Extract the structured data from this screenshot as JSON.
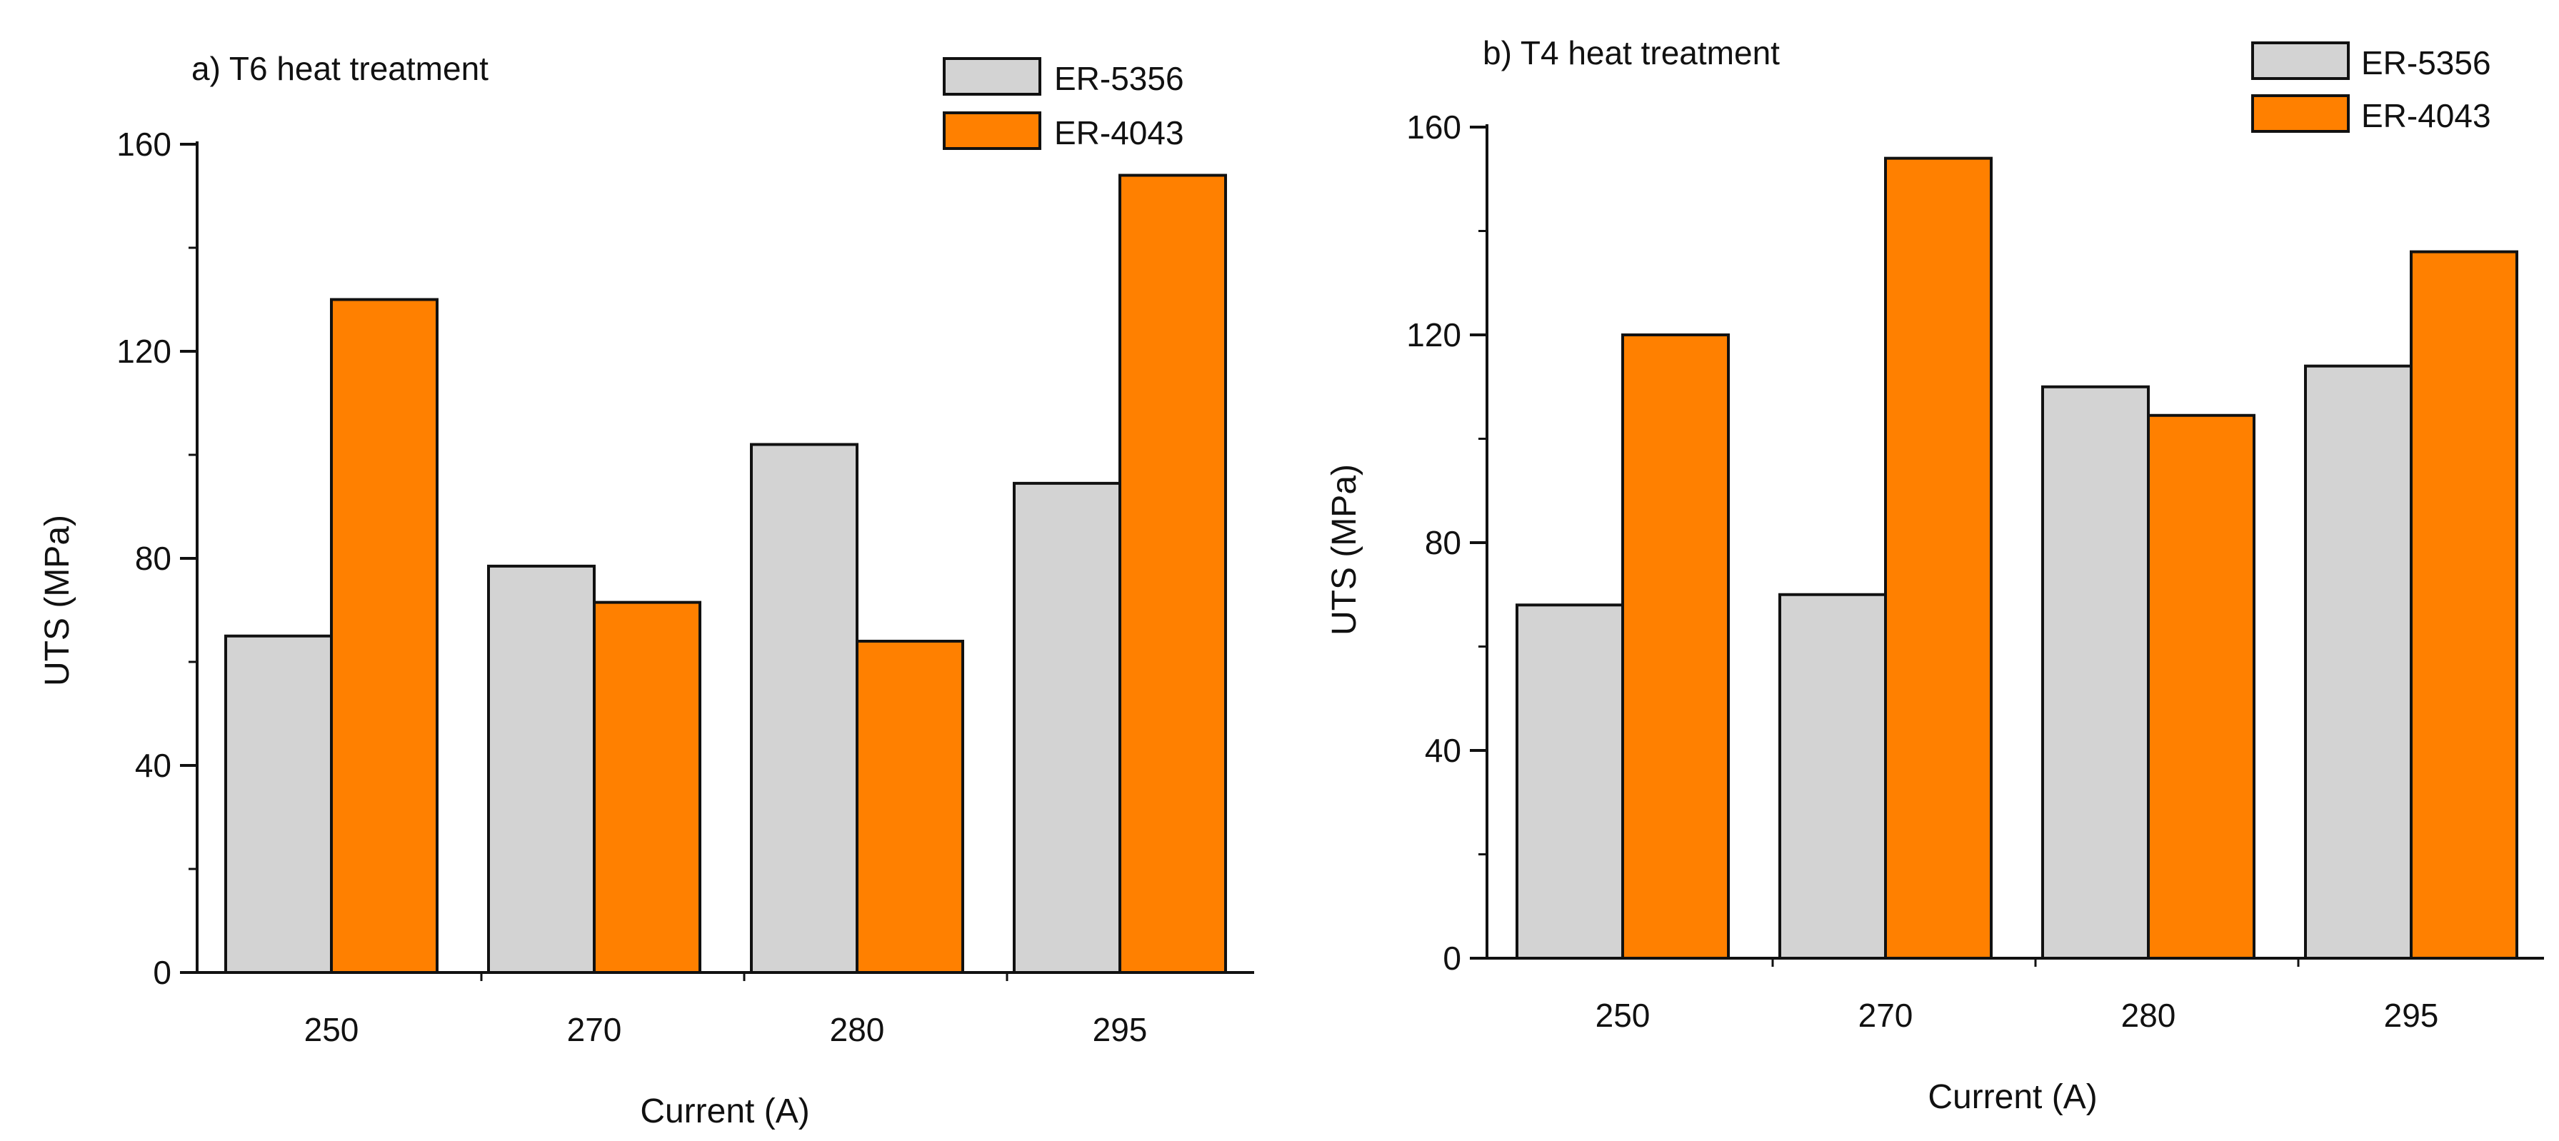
{
  "colors": {
    "er5356": "#d3d3d3",
    "er4043": "#ff8000",
    "stroke": "#111111"
  },
  "chart_data": [
    {
      "type": "bar",
      "title": "a) T6 heat treatment",
      "xlabel": "Current (A)",
      "ylabel": "UTS (MPa)",
      "ylim": [
        0,
        160
      ],
      "yticks": [
        0,
        40,
        80,
        120,
        160
      ],
      "ytick_labels": [
        "0",
        "40",
        "80",
        "120",
        "160"
      ],
      "categories": [
        "250",
        "270",
        "280",
        "295"
      ],
      "legend_position": "top-right",
      "grid": false,
      "series": [
        {
          "name": "ER-5356",
          "values": [
            65,
            78.5,
            102,
            94.5
          ]
        },
        {
          "name": "ER-4043",
          "values": [
            130,
            71.5,
            64,
            154
          ]
        }
      ]
    },
    {
      "type": "bar",
      "title": "b) T4 heat treatment",
      "xlabel": "Current (A)",
      "ylabel": "UTS (MPa)",
      "ylim": [
        0,
        160
      ],
      "yticks": [
        0,
        40,
        80,
        120,
        160
      ],
      "ytick_labels": [
        "0",
        "40",
        "80",
        "120",
        "160"
      ],
      "categories": [
        "250",
        "270",
        "280",
        "295"
      ],
      "legend_position": "top-right",
      "grid": false,
      "series": [
        {
          "name": "ER-5356",
          "values": [
            68,
            70,
            110,
            114
          ]
        },
        {
          "name": "ER-4043",
          "values": [
            120,
            154,
            104.5,
            136
          ]
        }
      ]
    }
  ]
}
